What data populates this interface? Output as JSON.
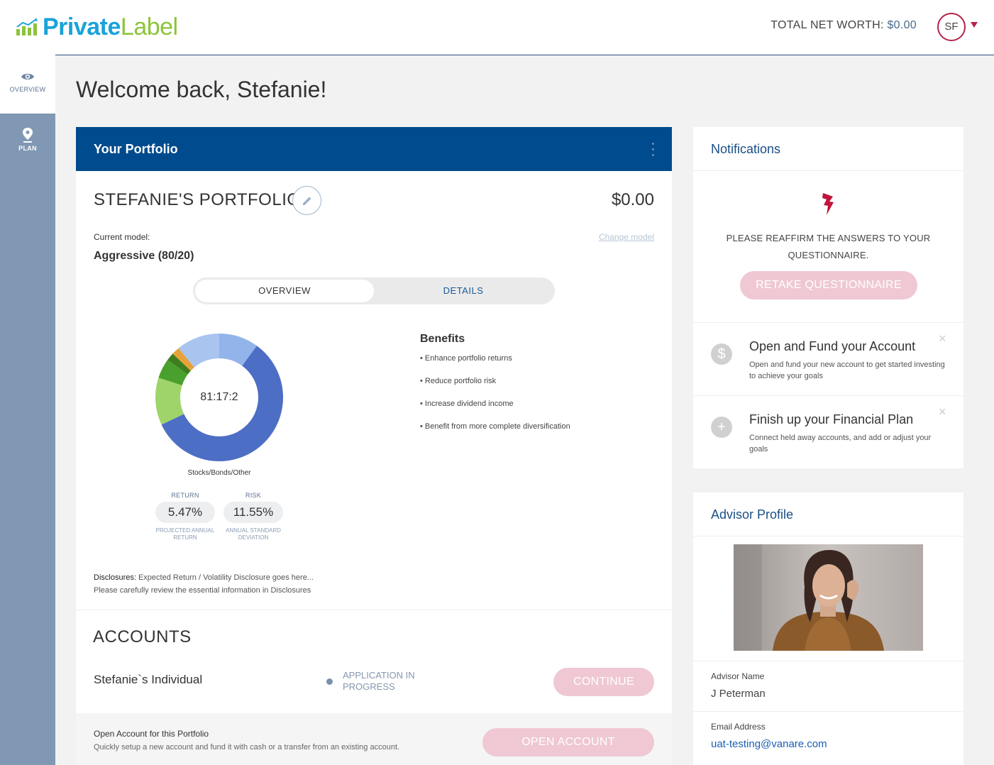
{
  "brand": {
    "private": "Private",
    "label": "Label",
    "color_primary": "#1aa3d9",
    "color_secondary": "#8cc43a"
  },
  "header": {
    "networth_label": "TOTAL NET WORTH:",
    "networth_value": "$0.00",
    "avatar_initials": "SF"
  },
  "sidebar": {
    "items": [
      {
        "label": "OVERVIEW",
        "icon": "eye-icon",
        "active": true
      },
      {
        "label": "PLAN",
        "icon": "map-pin-icon",
        "active": false
      }
    ]
  },
  "welcome": "Welcome back, Stefanie!",
  "portfolio": {
    "header_title": "Your Portfolio",
    "name": "STEFANIE'S PORTFOLIO",
    "value": "$0.00",
    "current_model_label": "Current model:",
    "change_model": "Change model",
    "model_name": "Aggressive (80/20)",
    "tabs": [
      "OVERVIEW",
      "DETAILS"
    ],
    "ratio_label": "81:17:2",
    "allocation_caption": "Stocks/Bonds/Other",
    "metrics": [
      {
        "label": "RETURN",
        "value": "5.47%",
        "sub1": "PROJECTED ANNUAL",
        "sub2": "RETURN"
      },
      {
        "label": "RISK",
        "value": "11.55%",
        "sub1": "ANNUAL STANDARD",
        "sub2": "DEVIATION"
      }
    ],
    "benefits_title": "Benefits",
    "benefits": [
      "• Enhance portfolio returns",
      "• Reduce portfolio risk",
      "• Increase dividend income",
      "• Benefit from more complete diversification"
    ],
    "disclosures_label": "Disclosures:",
    "disclosures_text": "Expected Return / Volatility Disclosure goes here...",
    "disclosures_line2": "Please carefully review the essential information in Disclosures"
  },
  "chart_data": {
    "type": "pie",
    "categories": [
      "Stocks",
      "Bonds",
      "Other"
    ],
    "segments": [
      {
        "value": 10,
        "color": "#93b4ea"
      },
      {
        "value": 58,
        "color": "#4d6ec5"
      },
      {
        "value": 12,
        "color": "#9fd46a"
      },
      {
        "value": 5,
        "color": "#49a02c"
      },
      {
        "value": 2,
        "color": "#3f7e1f"
      },
      {
        "value": 2,
        "color": "#e8a23a"
      },
      {
        "value": 11,
        "color": "#a9c4ef"
      }
    ]
  },
  "accounts": {
    "title": "ACCOUNTS",
    "items": [
      {
        "name": "Stefanie`s Individual",
        "status_line1": "APPLICATION IN",
        "status_line2": "PROGRESS",
        "action": "CONTINUE"
      }
    ],
    "open_title": "Open Account for this Portfolio",
    "open_sub": "Quickly setup a new account and fund it with cash or a transfer from an existing account.",
    "open_action": "OPEN ACCOUNT"
  },
  "notifications": {
    "title": "Notifications",
    "alert_line1": "PLEASE REAFFIRM THE ANSWERS TO YOUR",
    "alert_line2": "QUESTIONNAIRE.",
    "alert_action": "RETAKE QUESTIONNAIRE",
    "items": [
      {
        "icon": "dollar-icon",
        "glyph": "$",
        "title": "Open and Fund your Account",
        "text": "Open and fund your new account to get started investing to achieve your goals",
        "close": "×"
      },
      {
        "icon": "plus-circle-icon",
        "glyph": "+",
        "title": "Finish up your Financial Plan",
        "text": "Connect held away accounts, and add or adjust your goals",
        "close": "×"
      }
    ]
  },
  "advisor": {
    "title": "Advisor Profile",
    "name_label": "Advisor Name",
    "name": "J Peterman",
    "email_label": "Email Address",
    "email": "uat-testing@vanare.com"
  }
}
